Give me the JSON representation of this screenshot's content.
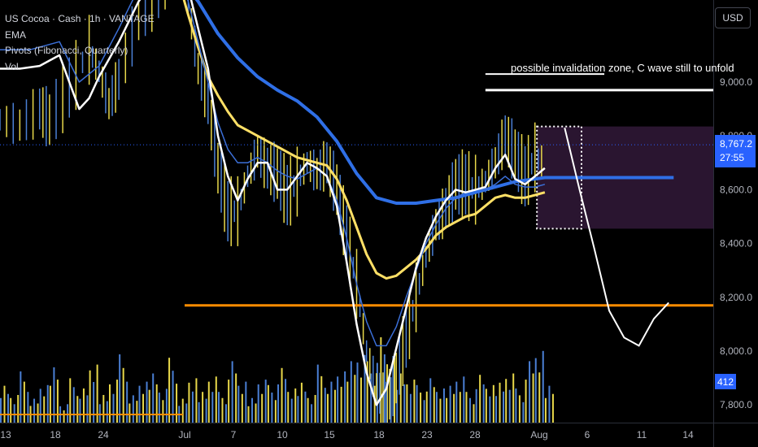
{
  "legend": {
    "symbol": "US Cocoa · Cash · 1h · VANTAGE",
    "ema": "EMA",
    "pivots": "Pivots (Fibonacci, Quarterly)",
    "vol": "Vol"
  },
  "currency": "USD",
  "last_price": {
    "price": "8,767.2",
    "countdown": "27:55"
  },
  "volume_badge": "412",
  "annotation": "possible invalidation zone, C wave still to unfold",
  "colors": {
    "bar_blue": "#4a7fd4",
    "bar_yellow": "#e8d84a",
    "ema_white": "#ffffff",
    "ema_blue_thin": "#3b6fd8",
    "ema_yellow": "#ffe066",
    "ema_blue_thick": "#2f6fe6",
    "pivot_orange": "#ff8c00",
    "zone_fill": "#2a1530",
    "axis_text": "#b2b5be"
  },
  "chart_data": {
    "type": "line",
    "y_ticks": [
      "9,000.0",
      "8,800.0",
      "8,600.0",
      "8,400.0",
      "8,200.0",
      "8,000.0",
      "7,800.0"
    ],
    "ylim": [
      7780,
      9380
    ],
    "x_ticks": [
      "13",
      "18",
      "24",
      "Jul",
      "7",
      "10",
      "15",
      "18",
      "23",
      "28",
      "Aug",
      "6",
      "11",
      "14"
    ],
    "series": [
      {
        "role": "price",
        "points": [
          [
            0,
            8860
          ],
          [
            2,
            8840
          ],
          [
            4,
            8900
          ],
          [
            5,
            8860
          ],
          [
            7,
            8980
          ],
          [
            9,
            9120
          ],
          [
            10,
            9040
          ],
          [
            11,
            8920
          ],
          [
            12,
            9010
          ],
          [
            14,
            9250
          ],
          [
            16,
            9350
          ],
          [
            18,
            9500
          ],
          [
            19,
            9300
          ],
          [
            20,
            9050
          ],
          [
            21,
            8920
          ],
          [
            22,
            8680
          ],
          [
            23,
            8520
          ],
          [
            24,
            8520
          ],
          [
            25,
            8650
          ],
          [
            26,
            8740
          ],
          [
            27,
            8680
          ],
          [
            28,
            8660
          ],
          [
            29,
            8580
          ],
          [
            30,
            8630
          ],
          [
            31,
            8700
          ],
          [
            32,
            8660
          ],
          [
            33,
            8700
          ],
          [
            34,
            8600
          ],
          [
            35,
            8430
          ],
          [
            36,
            8250
          ],
          [
            37,
            8000
          ],
          [
            38,
            7860
          ],
          [
            39,
            7810
          ],
          [
            40,
            7900
          ],
          [
            41,
            8050
          ],
          [
            42,
            8200
          ],
          [
            43,
            8350
          ],
          [
            44,
            8470
          ],
          [
            45,
            8530
          ],
          [
            46,
            8620
          ],
          [
            47,
            8620
          ],
          [
            48,
            8600
          ],
          [
            49,
            8630
          ],
          [
            50,
            8700
          ],
          [
            51,
            8800
          ],
          [
            52,
            8730
          ],
          [
            53,
            8650
          ],
          [
            54,
            8720
          ],
          [
            55,
            8700
          ]
        ]
      },
      {
        "role": "projection",
        "points": [
          [
            57,
            8830
          ],
          [
            58.5,
            8600
          ],
          [
            60,
            8380
          ],
          [
            61.5,
            8150
          ],
          [
            63,
            8050
          ],
          [
            64.5,
            8020
          ],
          [
            66,
            8120
          ],
          [
            67.5,
            8180
          ]
        ]
      },
      {
        "name": "EMA",
        "role": "ema-white",
        "points": [
          [
            0,
            9050
          ],
          [
            2,
            9050
          ],
          [
            4,
            9060
          ],
          [
            6,
            9100
          ],
          [
            8,
            8900
          ],
          [
            9,
            8940
          ],
          [
            10,
            9020
          ],
          [
            12,
            9150
          ],
          [
            14,
            9300
          ],
          [
            16,
            9400
          ],
          [
            18,
            9450
          ],
          [
            19,
            9350
          ],
          [
            20,
            9200
          ],
          [
            21,
            9050
          ],
          [
            22,
            8800
          ],
          [
            23,
            8650
          ],
          [
            24,
            8560
          ],
          [
            25,
            8640
          ],
          [
            26,
            8700
          ],
          [
            27,
            8700
          ],
          [
            28,
            8600
          ],
          [
            29,
            8600
          ],
          [
            30,
            8650
          ],
          [
            31,
            8700
          ],
          [
            32,
            8680
          ],
          [
            33,
            8650
          ],
          [
            34,
            8540
          ],
          [
            35,
            8330
          ],
          [
            36,
            8100
          ],
          [
            37,
            7920
          ],
          [
            38,
            7800
          ],
          [
            39,
            7860
          ],
          [
            40,
            8010
          ],
          [
            41,
            8160
          ],
          [
            42,
            8310
          ],
          [
            43,
            8420
          ],
          [
            44,
            8500
          ],
          [
            45,
            8560
          ],
          [
            46,
            8600
          ],
          [
            47,
            8590
          ],
          [
            48,
            8600
          ],
          [
            49,
            8610
          ],
          [
            50,
            8680
          ],
          [
            51,
            8730
          ],
          [
            52,
            8640
          ],
          [
            53,
            8620
          ],
          [
            54,
            8650
          ],
          [
            55,
            8680
          ]
        ]
      },
      {
        "role": "ema-blue-thin",
        "points": [
          [
            0,
            9120
          ],
          [
            3,
            9120
          ],
          [
            6,
            9150
          ],
          [
            8,
            9000
          ],
          [
            10,
            9060
          ],
          [
            12,
            9200
          ],
          [
            14,
            9350
          ],
          [
            16,
            9450
          ],
          [
            17,
            9480
          ],
          [
            18,
            9400
          ],
          [
            19,
            9300
          ],
          [
            20,
            9150
          ],
          [
            21,
            9000
          ],
          [
            22,
            8850
          ],
          [
            23,
            8750
          ],
          [
            24,
            8700
          ],
          [
            25,
            8700
          ],
          [
            26,
            8720
          ],
          [
            27,
            8700
          ],
          [
            28,
            8670
          ],
          [
            29,
            8650
          ],
          [
            30,
            8640
          ],
          [
            31,
            8660
          ],
          [
            32,
            8680
          ],
          [
            33,
            8650
          ],
          [
            34,
            8560
          ],
          [
            35,
            8420
          ],
          [
            36,
            8250
          ],
          [
            37,
            8110
          ],
          [
            38,
            8020
          ],
          [
            39,
            8020
          ],
          [
            40,
            8090
          ],
          [
            41,
            8200
          ],
          [
            42,
            8300
          ],
          [
            43,
            8400
          ],
          [
            44,
            8470
          ],
          [
            45,
            8530
          ],
          [
            46,
            8570
          ],
          [
            47,
            8590
          ],
          [
            48,
            8600
          ],
          [
            49,
            8600
          ],
          [
            50,
            8620
          ],
          [
            51,
            8650
          ],
          [
            52,
            8620
          ],
          [
            53,
            8610
          ],
          [
            54,
            8610
          ],
          [
            55,
            8620
          ]
        ]
      },
      {
        "role": "ema-yellow",
        "points": [
          [
            17,
            9500
          ],
          [
            18,
            9380
          ],
          [
            19,
            9250
          ],
          [
            20,
            9130
          ],
          [
            21,
            9020
          ],
          [
            22,
            8950
          ],
          [
            23,
            8890
          ],
          [
            24,
            8840
          ],
          [
            25,
            8820
          ],
          [
            26,
            8800
          ],
          [
            27,
            8780
          ],
          [
            28,
            8760
          ],
          [
            29,
            8740
          ],
          [
            30,
            8720
          ],
          [
            31,
            8710
          ],
          [
            32,
            8700
          ],
          [
            33,
            8690
          ],
          [
            34,
            8640
          ],
          [
            35,
            8560
          ],
          [
            36,
            8460
          ],
          [
            37,
            8360
          ],
          [
            38,
            8290
          ],
          [
            39,
            8270
          ],
          [
            40,
            8280
          ],
          [
            41,
            8310
          ],
          [
            42,
            8340
          ],
          [
            43,
            8380
          ],
          [
            44,
            8430
          ],
          [
            45,
            8460
          ],
          [
            46,
            8480
          ],
          [
            47,
            8500
          ],
          [
            48,
            8510
          ],
          [
            49,
            8540
          ],
          [
            50,
            8570
          ],
          [
            51,
            8580
          ],
          [
            52,
            8570
          ],
          [
            53,
            8570
          ],
          [
            54,
            8580
          ],
          [
            55,
            8590
          ]
        ]
      },
      {
        "role": "ema-blue-thick",
        "points": [
          [
            18,
            9390
          ],
          [
            20,
            9300
          ],
          [
            22,
            9180
          ],
          [
            24,
            9090
          ],
          [
            26,
            9020
          ],
          [
            28,
            8970
          ],
          [
            30,
            8930
          ],
          [
            32,
            8870
          ],
          [
            34,
            8780
          ],
          [
            36,
            8660
          ],
          [
            38,
            8570
          ],
          [
            40,
            8550
          ],
          [
            42,
            8550
          ],
          [
            44,
            8560
          ],
          [
            46,
            8570
          ],
          [
            48,
            8590
          ],
          [
            50,
            8610
          ],
          [
            52,
            8630
          ],
          [
            54,
            8640
          ],
          [
            55,
            8645
          ],
          [
            58,
            8645
          ],
          [
            62,
            8645
          ],
          [
            68,
            8645
          ]
        ]
      }
    ],
    "volume": [
      12,
      9,
      15,
      7,
      11,
      18,
      6,
      13,
      10,
      17,
      9,
      14,
      20,
      8,
      12,
      16,
      11,
      19,
      7,
      13,
      10,
      15,
      9,
      18,
      12,
      8,
      14,
      11,
      16,
      10,
      13,
      9,
      17,
      12,
      15,
      20,
      22,
      18,
      25,
      19,
      16,
      14,
      11,
      13,
      10,
      12,
      15,
      9,
      14,
      11,
      13,
      16,
      10,
      18,
      21,
      12
    ]
  }
}
